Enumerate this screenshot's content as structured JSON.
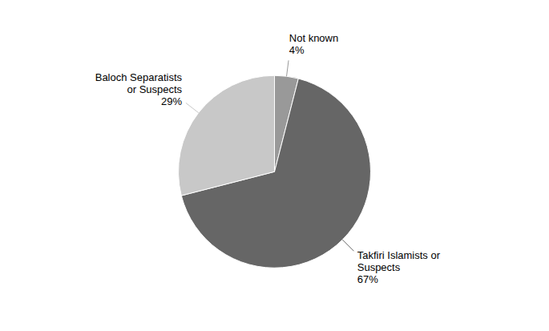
{
  "chart_data": {
    "type": "pie",
    "categories": [
      "Not known",
      "Takfiri Islamists or\nSuspects",
      "Baloch Separatists\nor Suspects"
    ],
    "values": [
      4,
      67,
      29
    ],
    "value_labels": [
      "4%",
      "67%",
      "29%"
    ],
    "colors": [
      "#999999",
      "#666666",
      "#c8c8c8"
    ],
    "data_labels": true
  }
}
